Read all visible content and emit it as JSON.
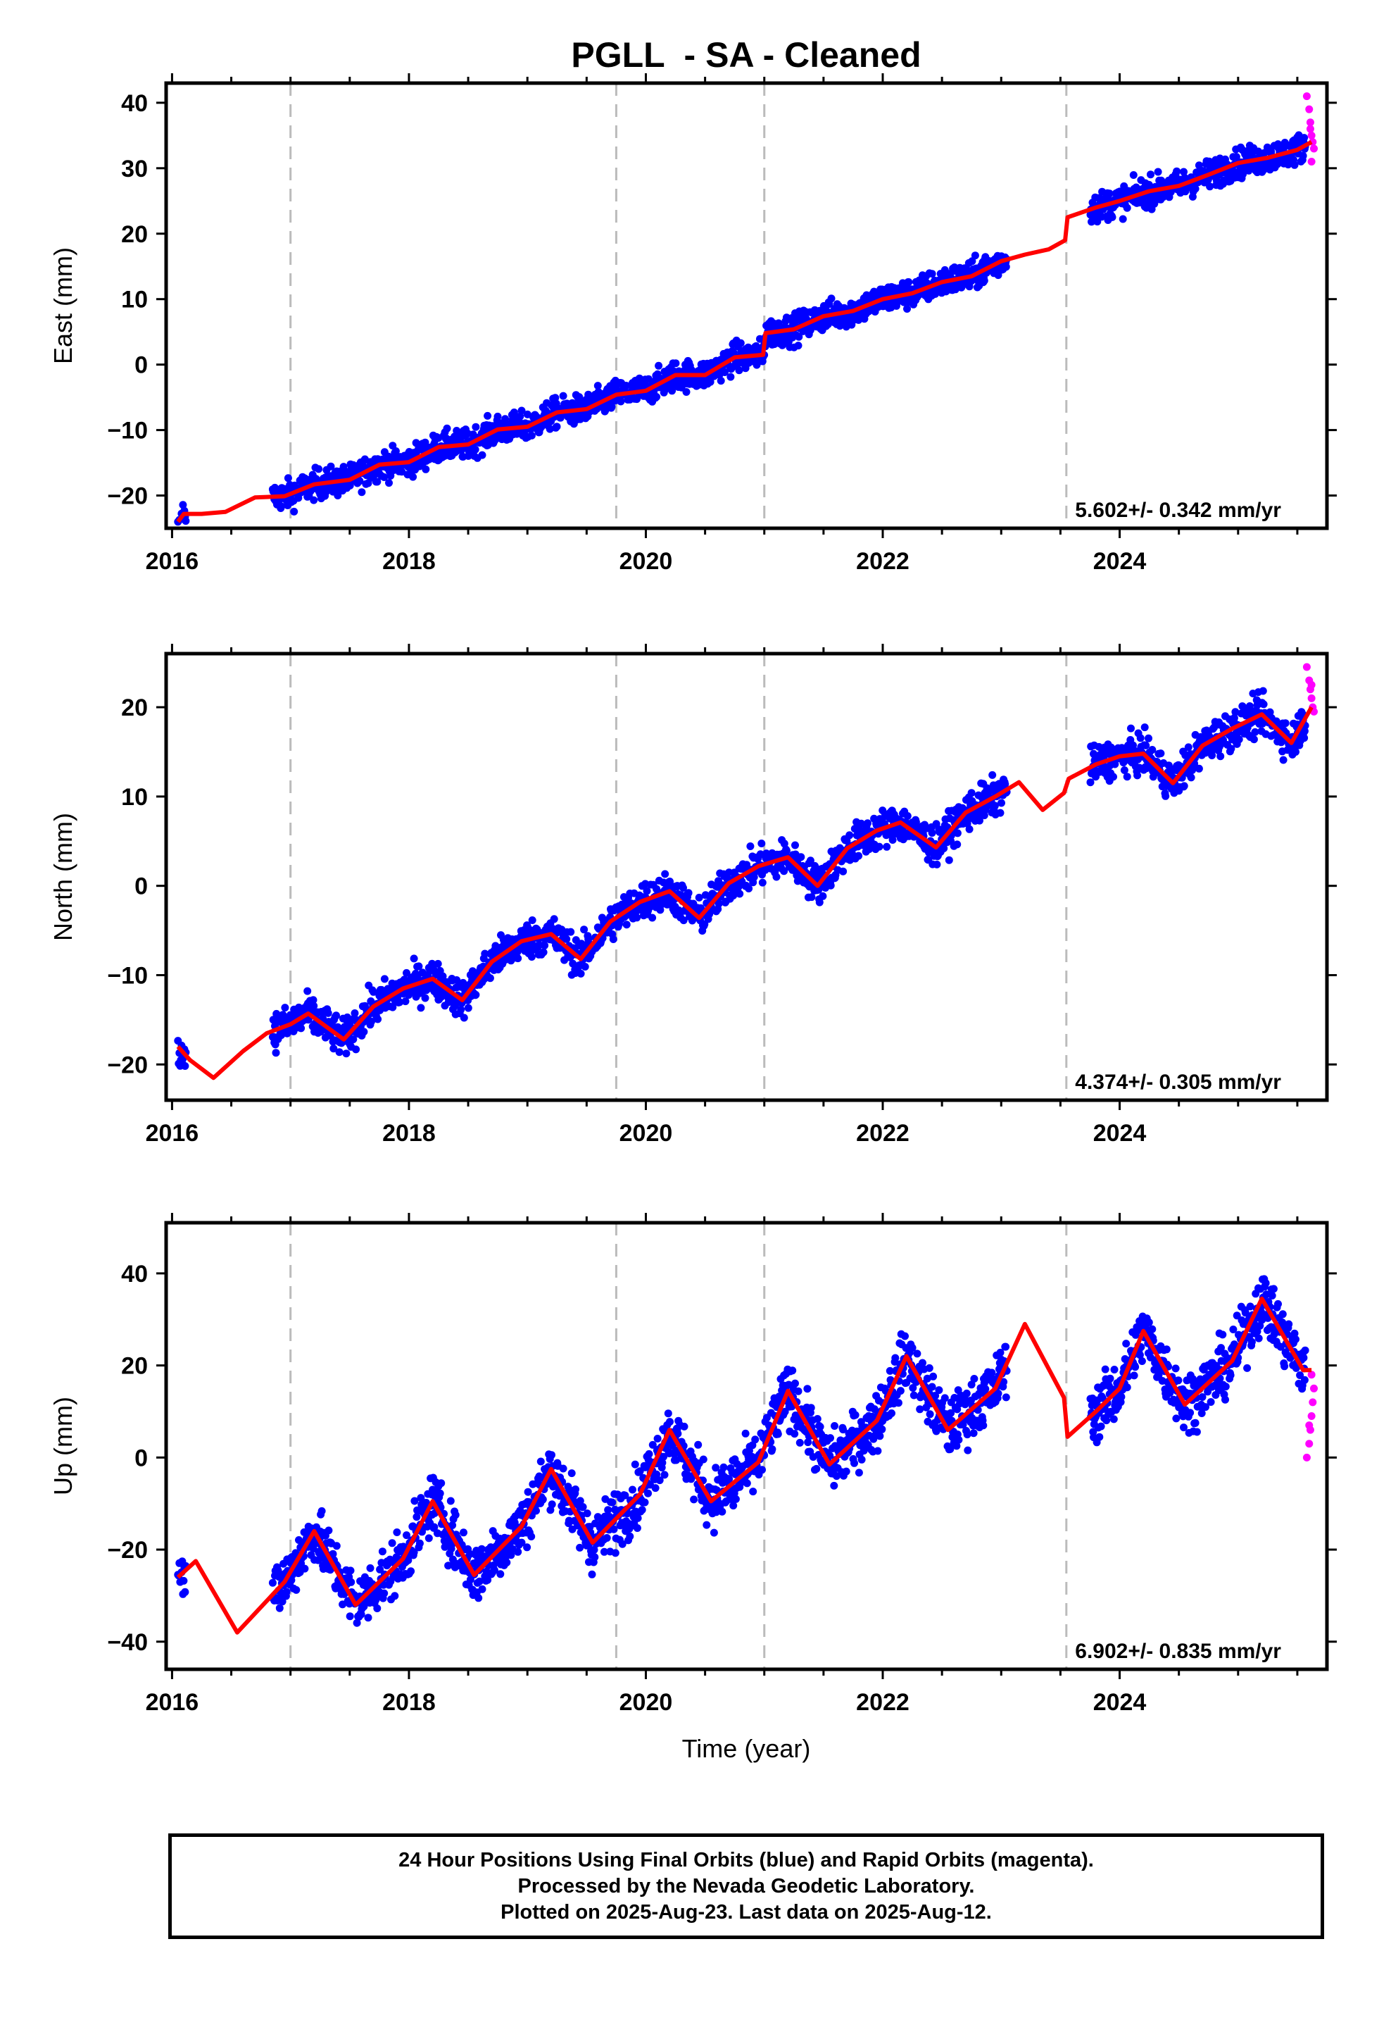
{
  "figure": {
    "title": "PGLL  - SA - Cleaned",
    "xlabel": "Time (year)",
    "footer": [
      "24 Hour Positions Using Final Orbits (blue) and Rapid Orbits (magenta).",
      "Processed by the Nevada Geodetic Laboratory.",
      "Plotted on 2025-Aug-23. Last data on 2025-Aug-12."
    ]
  },
  "colors": {
    "final_orbits": "#0000ff",
    "rapid_orbits": "#ff00ff",
    "model_fit": "#ff0000",
    "event_lines": "#bbbbbb"
  },
  "chart_data": [
    {
      "type": "scatter",
      "ylabel": "East (mm)",
      "xlim": [
        2015.95,
        2025.75
      ],
      "ylim": [
        -25,
        43
      ],
      "xticks": [
        2016,
        2018,
        2020,
        2022,
        2024
      ],
      "yticks": [
        -20,
        -10,
        0,
        10,
        20,
        30,
        40
      ],
      "event_lines": [
        2017.0,
        2019.75,
        2021.0,
        2023.55
      ],
      "rate_label": "5.602+/- 0.342 mm/yr",
      "series": [
        {
          "role": "model fit",
          "x": [
            2016.05,
            2016.1,
            2016.25,
            2016.45,
            2016.7,
            2016.95,
            2017.2,
            2017.5,
            2017.75,
            2018.0,
            2018.25,
            2018.5,
            2018.75,
            2019.0,
            2019.25,
            2019.5,
            2019.75,
            2020.0,
            2020.25,
            2020.5,
            2020.75,
            2020.99,
            2021.01,
            2021.25,
            2021.5,
            2021.75,
            2022.0,
            2022.25,
            2022.5,
            2022.75,
            2023.0,
            2023.2,
            2023.4,
            2023.54,
            2023.56,
            2023.8,
            2024.0,
            2024.25,
            2024.5,
            2024.75,
            2025.0,
            2025.25,
            2025.5,
            2025.62
          ],
          "y": [
            -24,
            -22.8,
            -22.8,
            -22.5,
            -20.3,
            -20.1,
            -18.3,
            -17.6,
            -15.3,
            -14.9,
            -12.6,
            -12.2,
            -9.9,
            -9.5,
            -7.3,
            -6.8,
            -4.6,
            -4.0,
            -1.6,
            -1.6,
            1.1,
            1.5,
            4.8,
            5.4,
            7.4,
            8.2,
            10.0,
            10.9,
            12.6,
            13.5,
            15.8,
            16.8,
            17.6,
            19.0,
            22.5,
            24.0,
            25.0,
            26.5,
            27.3,
            29.0,
            30.8,
            31.6,
            32.8,
            34.0
          ]
        },
        {
          "role": "rapid orbits",
          "x": [
            2025.58,
            2025.6,
            2025.61,
            2025.62,
            2025.63,
            2025.64,
            2025.62,
            2025.61
          ],
          "y": [
            41,
            39,
            37,
            35,
            34,
            33,
            31,
            36
          ]
        }
      ]
    },
    {
      "type": "scatter",
      "ylabel": "North (mm)",
      "xlim": [
        2015.95,
        2025.75
      ],
      "ylim": [
        -24,
        26
      ],
      "xticks": [
        2016,
        2018,
        2020,
        2022,
        2024
      ],
      "yticks": [
        -20,
        -10,
        0,
        10,
        20
      ],
      "event_lines": [
        2017.0,
        2019.75,
        2021.0,
        2023.55
      ],
      "rate_label": "4.374+/- 0.305 mm/yr",
      "series": [
        {
          "role": "model fit",
          "x": [
            2016.05,
            2016.15,
            2016.35,
            2016.6,
            2016.8,
            2017.0,
            2017.15,
            2017.45,
            2017.7,
            2017.95,
            2018.2,
            2018.45,
            2018.7,
            2018.95,
            2019.2,
            2019.45,
            2019.7,
            2019.95,
            2020.2,
            2020.45,
            2020.7,
            2020.95,
            2021.2,
            2021.45,
            2021.7,
            2021.95,
            2022.15,
            2022.45,
            2022.7,
            2022.95,
            2023.15,
            2023.35,
            2023.53,
            2023.57,
            2023.8,
            2024.0,
            2024.2,
            2024.45,
            2024.7,
            2024.95,
            2025.2,
            2025.45,
            2025.62
          ],
          "y": [
            -18,
            -19.5,
            -21.5,
            -18.5,
            -16.5,
            -15.5,
            -14.3,
            -17.2,
            -13.5,
            -11.5,
            -10.4,
            -12.8,
            -8.5,
            -6.2,
            -5.4,
            -8.2,
            -4.0,
            -1.8,
            -0.6,
            -3.6,
            0.3,
            2.2,
            3.2,
            0.0,
            4.2,
            6.2,
            7.1,
            4.3,
            8.2,
            10.0,
            11.6,
            8.5,
            10.4,
            12.0,
            13.6,
            14.5,
            14.8,
            11.5,
            15.7,
            17.6,
            19.2,
            16.0,
            20.0
          ]
        },
        {
          "role": "rapid orbits",
          "x": [
            2025.58,
            2025.6,
            2025.61,
            2025.62,
            2025.63,
            2025.64,
            2025.62
          ],
          "y": [
            24.5,
            23,
            22,
            21,
            20,
            19.5,
            22.5
          ]
        }
      ]
    },
    {
      "type": "scatter",
      "ylabel": "Up (mm)",
      "xlim": [
        2015.95,
        2025.75
      ],
      "ylim": [
        -46,
        51
      ],
      "xticks": [
        2016,
        2018,
        2020,
        2022,
        2024
      ],
      "yticks": [
        -40,
        -20,
        0,
        20,
        40
      ],
      "event_lines": [
        2017.0,
        2019.75,
        2021.0,
        2023.55
      ],
      "rate_label": "6.902+/- 0.835 mm/yr",
      "series": [
        {
          "role": "model fit",
          "x": [
            2016.05,
            2016.2,
            2016.55,
            2016.95,
            2017.2,
            2017.55,
            2017.95,
            2018.2,
            2018.55,
            2018.95,
            2019.2,
            2019.55,
            2019.95,
            2020.2,
            2020.55,
            2020.95,
            2021.2,
            2021.55,
            2021.95,
            2022.2,
            2022.55,
            2022.95,
            2023.2,
            2023.53,
            2023.56,
            2023.8,
            2024.0,
            2024.2,
            2024.55,
            2024.95,
            2025.2,
            2025.55,
            2025.62
          ],
          "y": [
            -26,
            -22.5,
            -38,
            -27,
            -16,
            -32,
            -22,
            -9.5,
            -25.5,
            -15,
            -2.5,
            -18.5,
            -8,
            6,
            -9.5,
            -1,
            14.5,
            -1.5,
            8,
            22,
            6,
            15,
            29,
            13,
            4.5,
            10,
            15,
            27.5,
            11.5,
            21,
            34.5,
            19,
            19
          ]
        },
        {
          "role": "rapid orbits",
          "x": [
            2025.58,
            2025.6,
            2025.61,
            2025.62,
            2025.63,
            2025.64,
            2025.62,
            2025.6
          ],
          "y": [
            0,
            3,
            6,
            9,
            12,
            15,
            18,
            7
          ]
        }
      ]
    }
  ]
}
